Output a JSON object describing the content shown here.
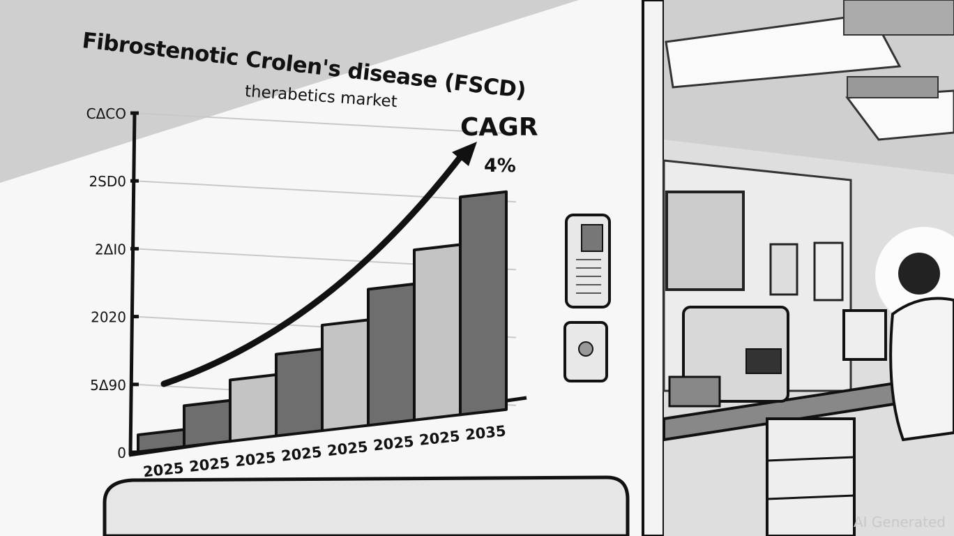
{
  "chart_data": {
    "type": "bar",
    "title": "Fibrostenotic Crolen's disease (FSCD)",
    "subtitle": "therabetics market",
    "annotation": {
      "label": "CAGR",
      "value": "4%"
    },
    "categories": [
      "2025",
      "2025",
      "2025",
      "2025",
      "2025",
      "2025",
      "2025",
      "2035"
    ],
    "y_tick_labels": [
      "0",
      "5Δ90",
      "2020",
      "2ΔI0",
      "2SD0",
      "CΔCO"
    ],
    "values": [
      0.25,
      0.6,
      0.9,
      1.2,
      1.55,
      2.0,
      2.5,
      3.2
    ],
    "value_units": "y tick steps (tick labels not numeric)",
    "ylim": [
      0,
      5
    ],
    "grid": true,
    "trend_arrow": true,
    "bar_colors": [
      "#6e6e6e",
      "#6e6e6e",
      "#c4c4c4",
      "#6e6e6e",
      "#c4c4c4",
      "#6e6e6e",
      "#c4c4c4",
      "#6e6e6e"
    ]
  },
  "watermark": "AI Generated"
}
